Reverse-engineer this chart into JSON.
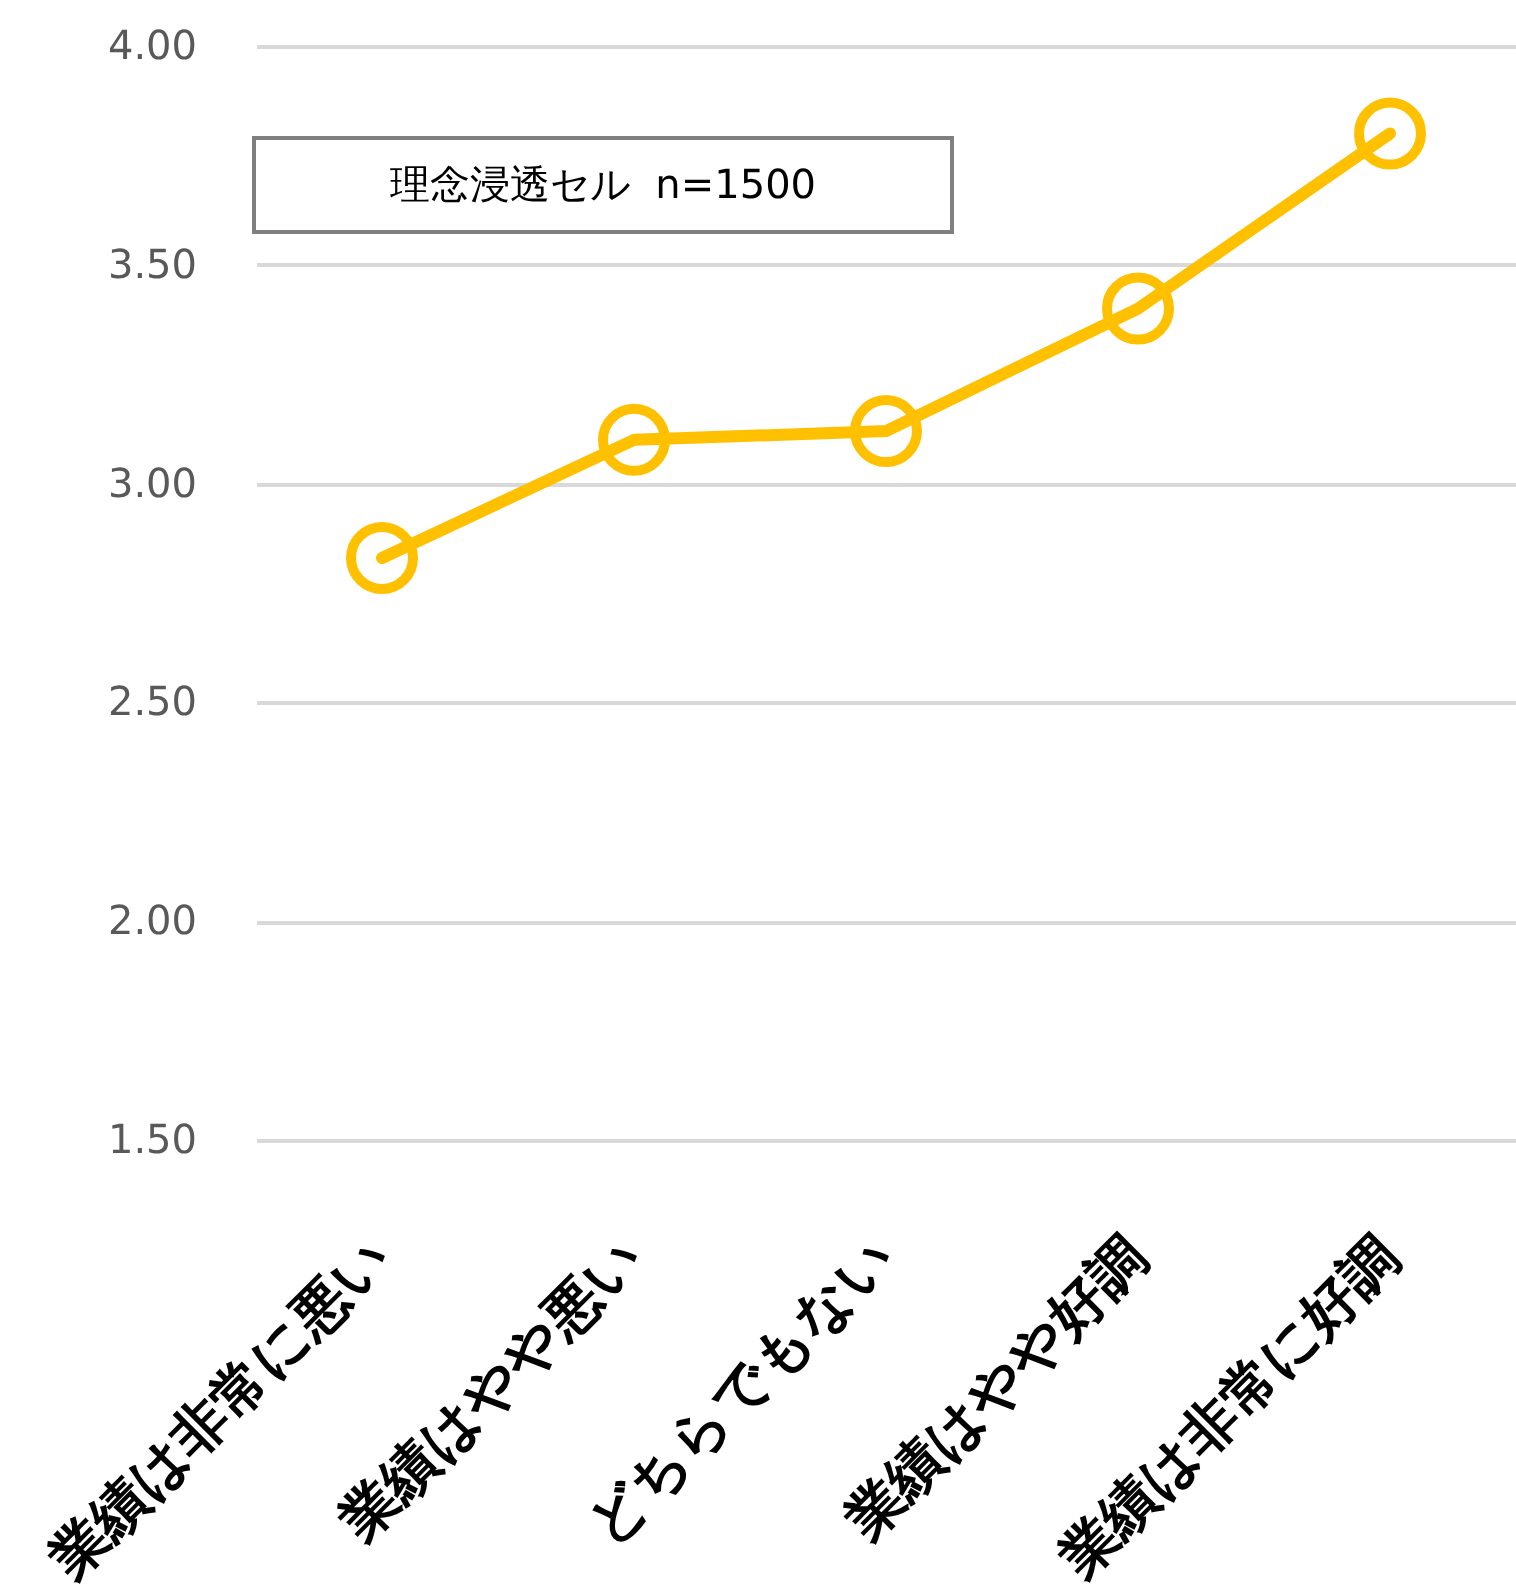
{
  "chart_data": {
    "type": "line",
    "categories": [
      "業績は非常に悪い",
      "業績はやや悪い",
      "どちらでもない",
      "業績はやや好調",
      "業績は非常に好調"
    ],
    "series": [
      {
        "color": "#ffc000",
        "values": [
          2.83,
          3.1,
          3.12,
          3.4,
          3.8
        ]
      }
    ],
    "ylim": [
      1.5,
      4.0
    ],
    "yticks": [
      {
        "value": 1.5,
        "label": "1.50"
      },
      {
        "value": 2.0,
        "label": "2.00"
      },
      {
        "value": 2.5,
        "label": "2.50"
      },
      {
        "value": 3.0,
        "label": "3.00"
      },
      {
        "value": 3.5,
        "label": "3.50"
      },
      {
        "value": 4.0,
        "label": "4.00"
      }
    ],
    "grid": "y",
    "marker": "circle",
    "line_style": "solid",
    "annotations": [
      "理念浸透セル  n=1500"
    ]
  }
}
